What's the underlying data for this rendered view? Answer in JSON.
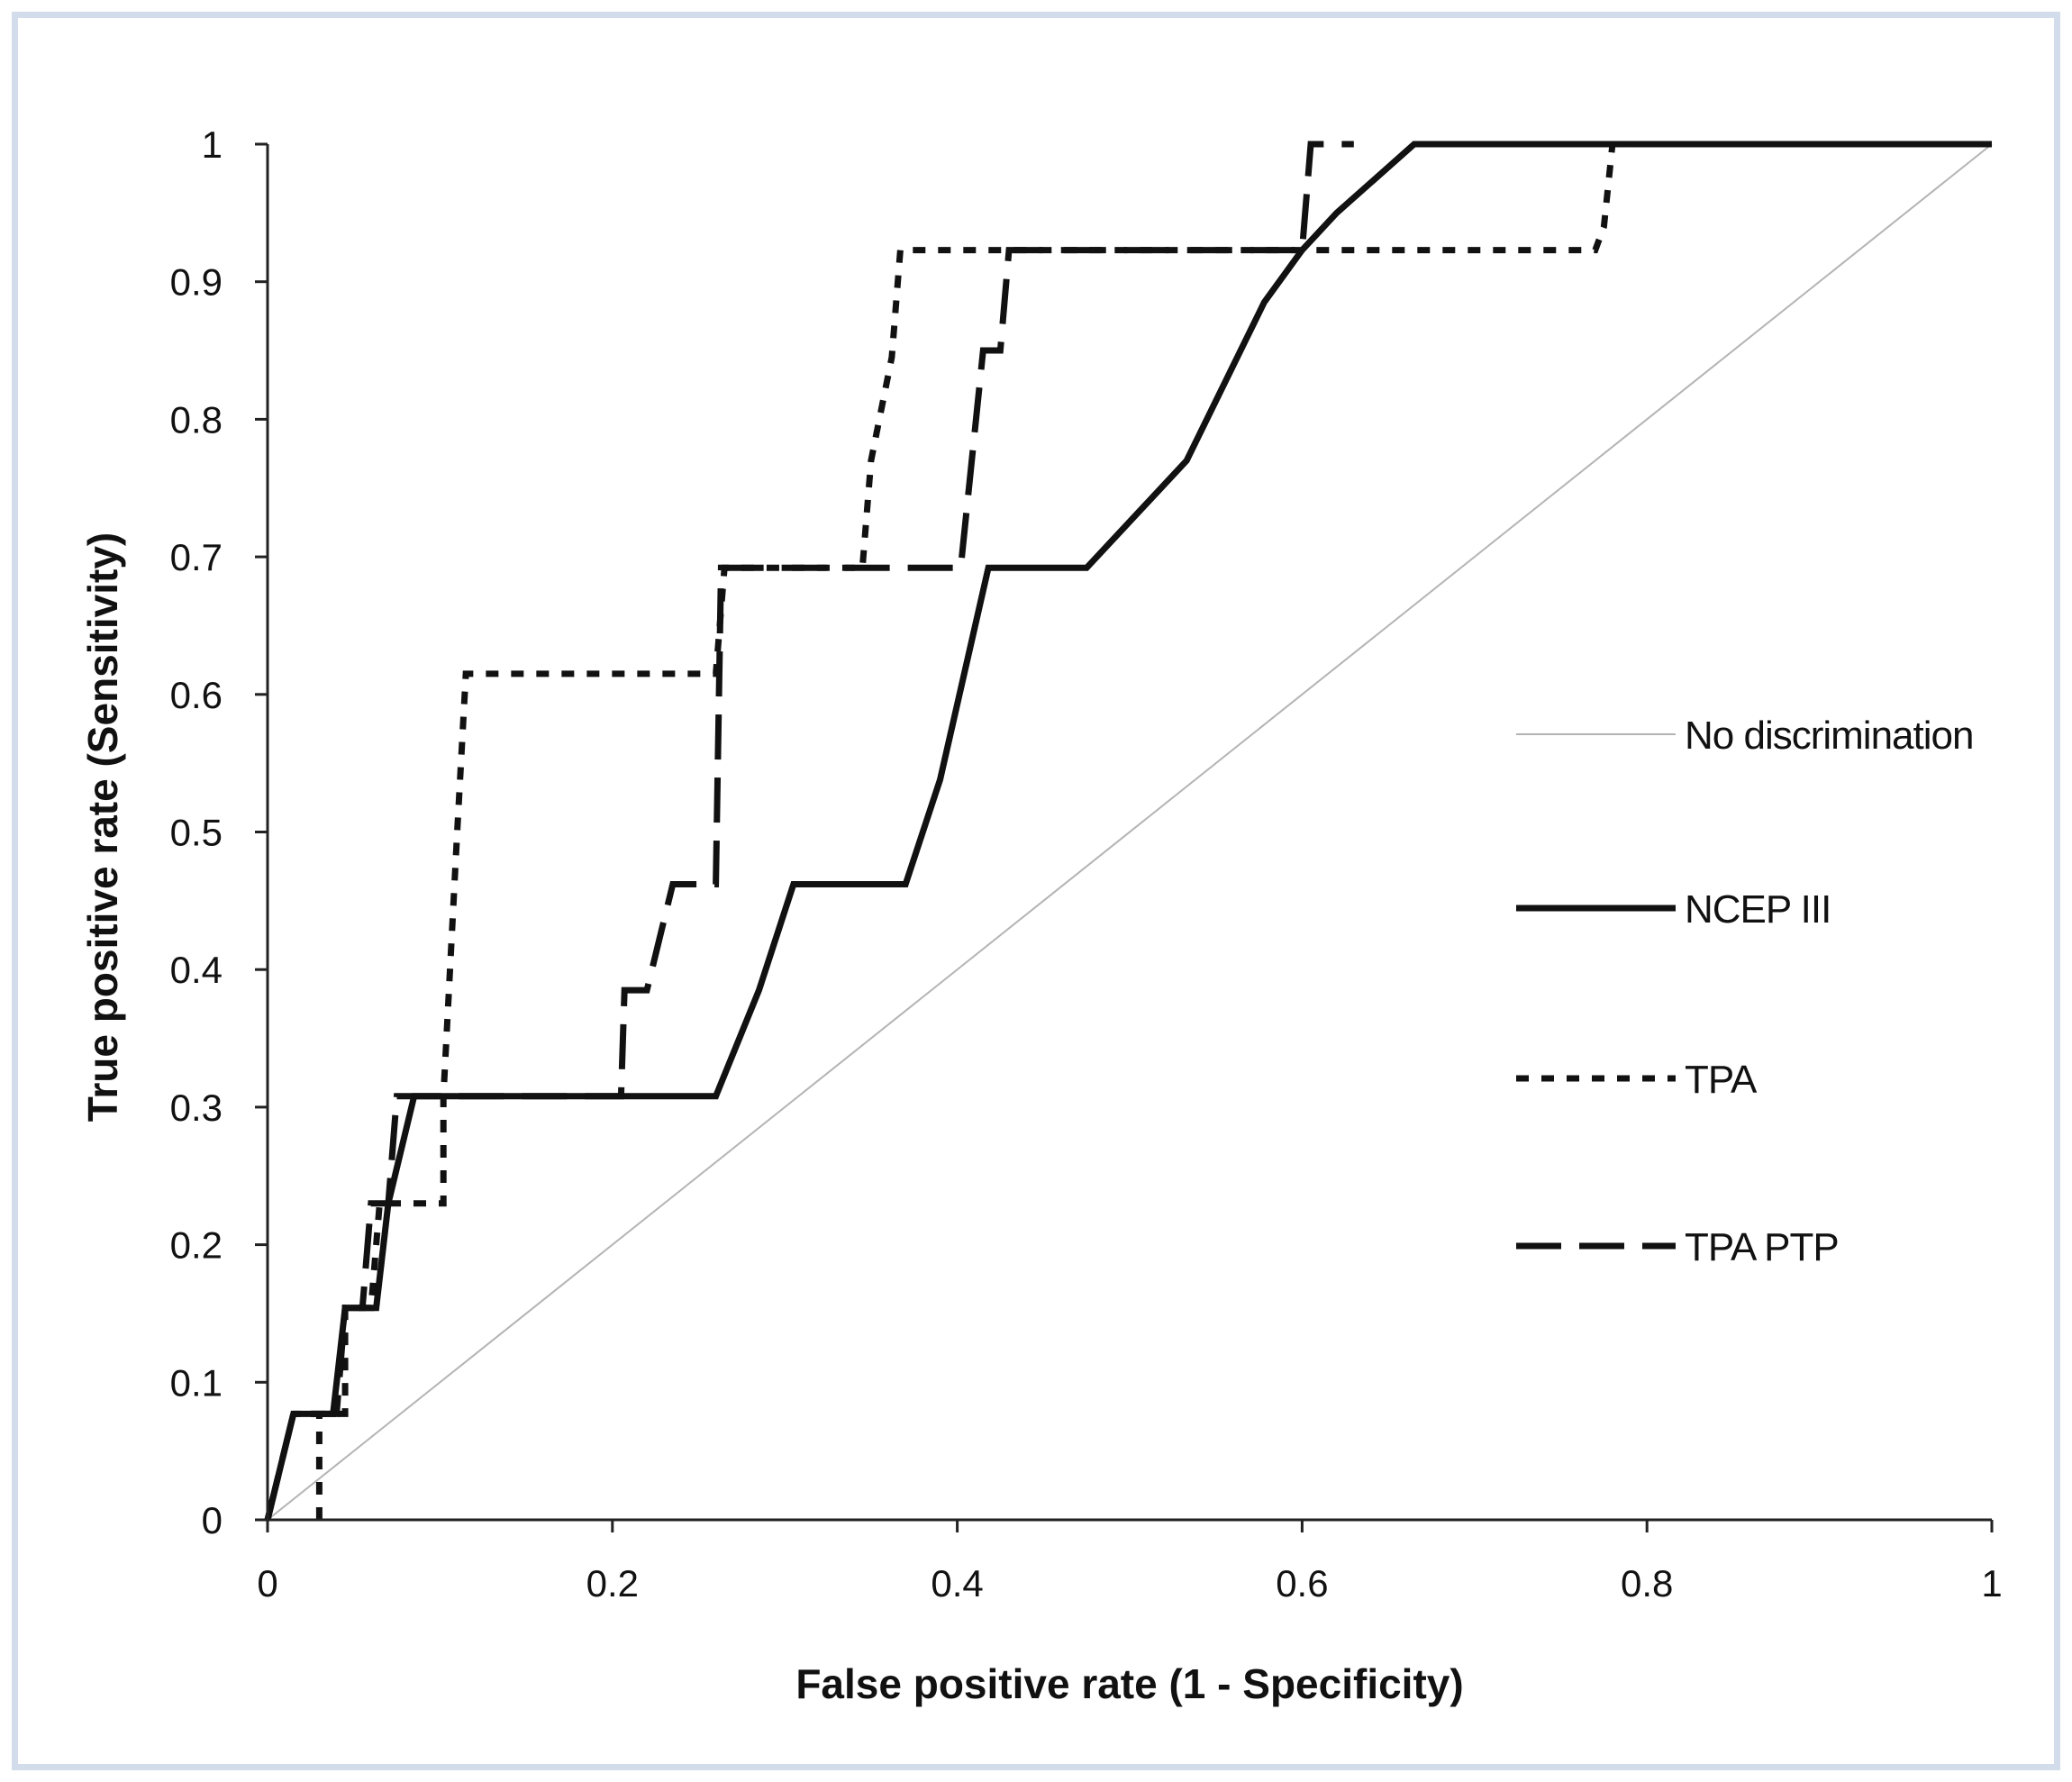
{
  "chart_data": {
    "type": "line",
    "title": "",
    "xlabel": "False positive rate (1 - Specificity)",
    "ylabel": "True positive rate (Sensitivity)",
    "xlim": [
      0,
      1
    ],
    "ylim": [
      0,
      1
    ],
    "x_ticks": [
      "0",
      "0.2",
      "0.4",
      "0.6",
      "0.8",
      "1"
    ],
    "y_ticks": [
      "0",
      "0.1",
      "0.2",
      "0.3",
      "0.4",
      "0.5",
      "0.6",
      "0.7",
      "0.8",
      "0.9",
      "1"
    ],
    "grid": false,
    "legend_position": "right",
    "series": [
      {
        "name": "No discrimination",
        "style": "thin-solid",
        "color": "#b4b4b4",
        "points": [
          [
            0,
            0
          ],
          [
            1,
            1
          ]
        ]
      },
      {
        "name": "NCEP III",
        "style": "solid",
        "color": "#111111",
        "points": [
          [
            0,
            0
          ],
          [
            0.015,
            0.077
          ],
          [
            0.038,
            0.077
          ],
          [
            0.045,
            0.154
          ],
          [
            0.063,
            0.154
          ],
          [
            0.07,
            0.23
          ],
          [
            0.085,
            0.308
          ],
          [
            0.26,
            0.308
          ],
          [
            0.285,
            0.385
          ],
          [
            0.305,
            0.462
          ],
          [
            0.37,
            0.462
          ],
          [
            0.39,
            0.538
          ],
          [
            0.418,
            0.692
          ],
          [
            0.475,
            0.692
          ],
          [
            0.533,
            0.77
          ],
          [
            0.578,
            0.885
          ],
          [
            0.6,
            0.923
          ],
          [
            0.62,
            0.95
          ],
          [
            0.665,
            1.0
          ],
          [
            1.0,
            1.0
          ]
        ]
      },
      {
        "name": "TPA",
        "style": "dotted",
        "color": "#111111",
        "points": [
          [
            0.03,
            0
          ],
          [
            0.03,
            0.077
          ],
          [
            0.015,
            0.077
          ],
          [
            0.045,
            0.077
          ],
          [
            0.045,
            0.154
          ],
          [
            0.06,
            0.154
          ],
          [
            0.065,
            0.23
          ],
          [
            0.102,
            0.23
          ],
          [
            0.102,
            0.308
          ],
          [
            0.11,
            0.5
          ],
          [
            0.115,
            0.615
          ],
          [
            0.26,
            0.615
          ],
          [
            0.265,
            0.692
          ],
          [
            0.345,
            0.692
          ],
          [
            0.35,
            0.77
          ],
          [
            0.362,
            0.845
          ],
          [
            0.367,
            0.923
          ],
          [
            0.77,
            0.923
          ],
          [
            0.775,
            0.94
          ],
          [
            0.78,
            1.0
          ],
          [
            0.79,
            1.0
          ]
        ]
      },
      {
        "name": "TPA PTP",
        "style": "dashed",
        "color": "#111111",
        "points": [
          [
            0,
            0
          ],
          [
            0.015,
            0.077
          ],
          [
            0.04,
            0.077
          ],
          [
            0.045,
            0.154
          ],
          [
            0.055,
            0.154
          ],
          [
            0.06,
            0.23
          ],
          [
            0.07,
            0.23
          ],
          [
            0.075,
            0.308
          ],
          [
            0.205,
            0.308
          ],
          [
            0.207,
            0.385
          ],
          [
            0.22,
            0.385
          ],
          [
            0.235,
            0.462
          ],
          [
            0.26,
            0.462
          ],
          [
            0.263,
            0.692
          ],
          [
            0.402,
            0.692
          ],
          [
            0.415,
            0.85
          ],
          [
            0.425,
            0.85
          ],
          [
            0.43,
            0.923
          ],
          [
            0.6,
            0.923
          ],
          [
            0.605,
            1.0
          ],
          [
            0.63,
            1.0
          ]
        ]
      }
    ]
  }
}
